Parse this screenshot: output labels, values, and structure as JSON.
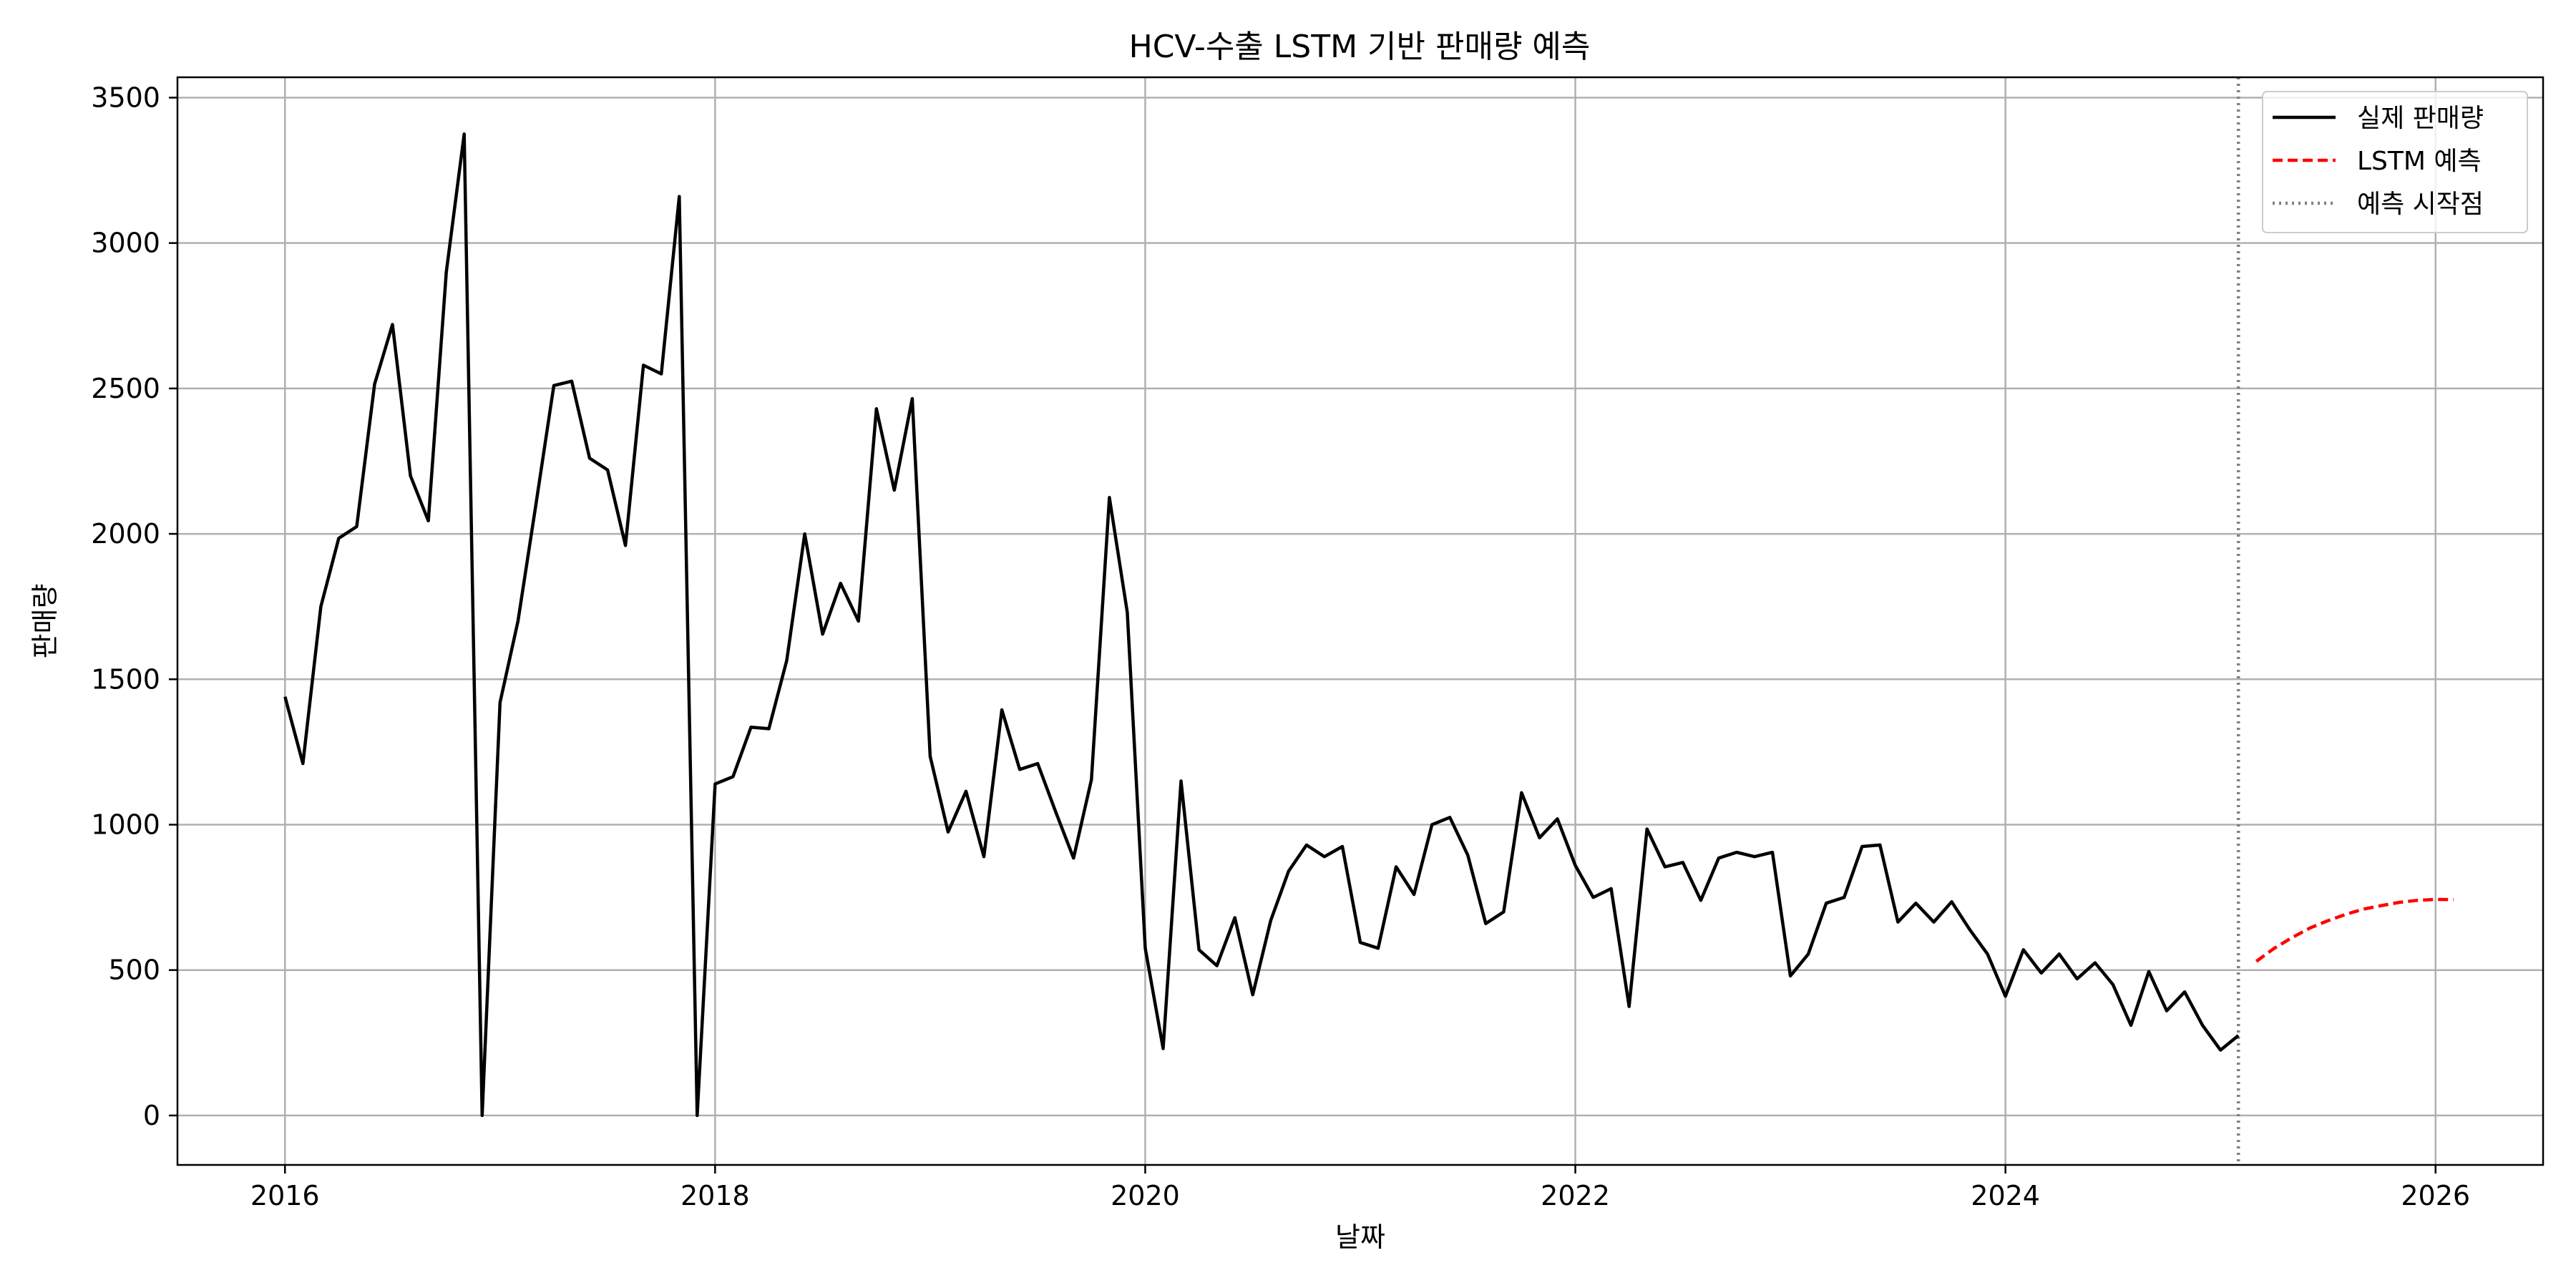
{
  "chart_data": {
    "type": "line",
    "title": "HCV-수출 LSTM 기반 판매량 예측",
    "xlabel": "날짜",
    "ylabel": "판매량",
    "xlim": [
      "2015-07",
      "2026-07"
    ],
    "ylim": [
      -170,
      3570
    ],
    "x_ticks": [
      "2016",
      "2018",
      "2020",
      "2022",
      "2024",
      "2026"
    ],
    "y_ticks": [
      "0",
      "500",
      "1000",
      "1500",
      "2000",
      "2500",
      "3000",
      "3500"
    ],
    "grid": true,
    "legend_position": "top-right",
    "series": [
      {
        "name": "실제 판매량",
        "color": "#000000",
        "style": "solid",
        "x": [
          "2016-01",
          "2016-02",
          "2016-03",
          "2016-04",
          "2016-05",
          "2016-06",
          "2016-07",
          "2016-08",
          "2016-09",
          "2016-10",
          "2016-11",
          "2016-12",
          "2017-01",
          "2017-02",
          "2017-03",
          "2017-04",
          "2017-05",
          "2017-06",
          "2017-07",
          "2017-08",
          "2017-09",
          "2017-10",
          "2017-11",
          "2017-12",
          "2018-01",
          "2018-02",
          "2018-03",
          "2018-04",
          "2018-05",
          "2018-06",
          "2018-07",
          "2018-08",
          "2018-09",
          "2018-10",
          "2018-11",
          "2018-12",
          "2019-01",
          "2019-02",
          "2019-03",
          "2019-04",
          "2019-05",
          "2019-06",
          "2019-07",
          "2019-08",
          "2019-09",
          "2019-10",
          "2019-11",
          "2019-12",
          "2020-01",
          "2020-02",
          "2020-03",
          "2020-04",
          "2020-05",
          "2020-06",
          "2020-07",
          "2020-08",
          "2020-09",
          "2020-10",
          "2020-11",
          "2020-12",
          "2021-01",
          "2021-02",
          "2021-03",
          "2021-04",
          "2021-05",
          "2021-06",
          "2021-07",
          "2021-08",
          "2021-09",
          "2021-10",
          "2021-11",
          "2021-12",
          "2022-01",
          "2022-02",
          "2022-03",
          "2022-04",
          "2022-05",
          "2022-06",
          "2022-07",
          "2022-08",
          "2022-09",
          "2022-10",
          "2022-11",
          "2022-12",
          "2023-01",
          "2023-02",
          "2023-03",
          "2023-04",
          "2023-05",
          "2023-06",
          "2023-07",
          "2023-08",
          "2023-09",
          "2023-10",
          "2023-11",
          "2023-12",
          "2024-01",
          "2024-02",
          "2024-03",
          "2024-04",
          "2024-05",
          "2024-06",
          "2024-07",
          "2024-08",
          "2024-09",
          "2024-10",
          "2024-11",
          "2024-12",
          "2025-01",
          "2025-02"
        ],
        "values": [
          1440,
          1210,
          1750,
          1985,
          2025,
          2515,
          2720,
          2200,
          2045,
          2900,
          3375,
          0,
          1420,
          1700,
          2100,
          2510,
          2525,
          2260,
          2220,
          1960,
          2580,
          2550,
          3160,
          0,
          1140,
          1165,
          1335,
          1330,
          1565,
          2000,
          1655,
          1830,
          1700,
          2430,
          2150,
          2465,
          1235,
          975,
          1115,
          890,
          1395,
          1190,
          1210,
          1045,
          885,
          1155,
          2125,
          1730,
          575,
          230,
          1150,
          570,
          515,
          680,
          415,
          670,
          840,
          930,
          890,
          925,
          595,
          575,
          855,
          760,
          1000,
          1025,
          895,
          660,
          700,
          1110,
          955,
          1020,
          860,
          750,
          780,
          375,
          985,
          855,
          870,
          740,
          885,
          905,
          890,
          905,
          480,
          555,
          730,
          750,
          925,
          930,
          665,
          730,
          665,
          735,
          640,
          555,
          410,
          570,
          490,
          555,
          470,
          525,
          450,
          310,
          495,
          360,
          425,
          310,
          225,
          275
        ]
      },
      {
        "name": "LSTM 예측",
        "color": "#ff0000",
        "style": "dashed",
        "x": [
          "2025-03",
          "2025-04",
          "2025-05",
          "2025-06",
          "2025-07",
          "2025-08",
          "2025-09",
          "2025-10",
          "2025-11",
          "2025-12",
          "2026-01",
          "2026-02"
        ],
        "values": [
          530,
          575,
          612,
          645,
          670,
          692,
          710,
          722,
          733,
          740,
          743,
          742
        ]
      }
    ],
    "vlines": [
      {
        "name": "예측 시작점",
        "x": "2025-02",
        "color": "#808080",
        "style": "dotted"
      }
    ]
  }
}
